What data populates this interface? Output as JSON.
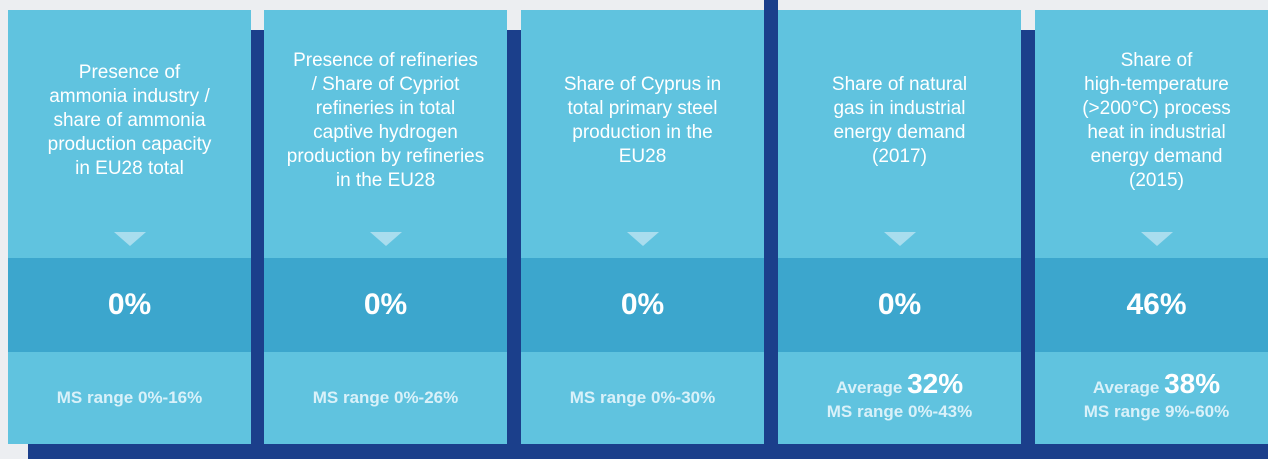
{
  "cards": [
    {
      "lines": [
        "Presence of",
        "ammonia industry /",
        "share of ammonia",
        "production capacity",
        "in EU28 total"
      ],
      "value": "0%",
      "range": "MS range 0%-16%"
    },
    {
      "lines": [
        "Presence of refineries",
        "/ Share of Cypriot",
        "refineries in total",
        "captive hydrogen",
        "production by refineries",
        "in the EU28"
      ],
      "value": "0%",
      "range": "MS range 0%-26%"
    },
    {
      "lines": [
        "Share of Cyprus in",
        "total primary steel",
        "production in the",
        "EU28"
      ],
      "value": "0%",
      "range": "MS range 0%-30%"
    },
    {
      "lines": [
        "Share of natural",
        "gas in industrial",
        "energy demand",
        "(2017)"
      ],
      "value": "0%",
      "average_label": "Average",
      "average_value": "32%",
      "range": "MS range 0%-43%"
    },
    {
      "lines": [
        "Share of",
        "high-temperature",
        "(>200°C) process",
        "heat in industrial",
        "energy demand",
        "(2015)"
      ],
      "value": "46%",
      "average_label": "Average",
      "average_value": "38%",
      "range": "MS range 9%-60%"
    }
  ]
}
